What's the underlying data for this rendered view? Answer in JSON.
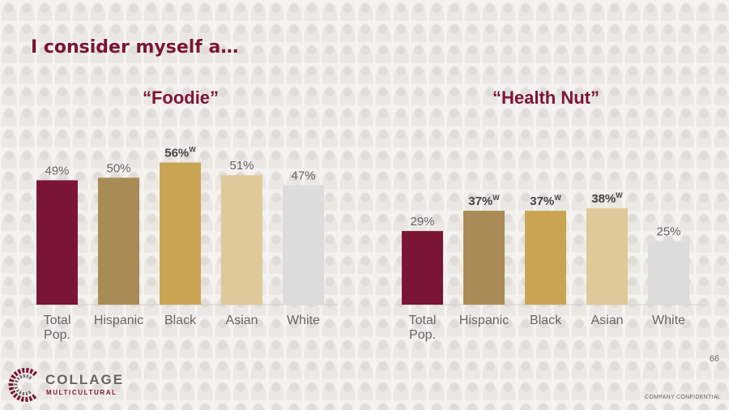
{
  "slide": {
    "title": "I consider myself a…",
    "page_number": "66",
    "confidential": "COMPANY CONFIDENTIAL",
    "logo": {
      "word": "COLLAGE",
      "sub": "MULTICULTURAL"
    }
  },
  "colors": {
    "Total Pop.": "#7a1535",
    "Hispanic": "#a98c55",
    "Black": "#c9a553",
    "Asian": "#dfc899",
    "White": "#dcdcdc",
    "title": "#7a1535"
  },
  "chart_data": [
    {
      "type": "bar",
      "title": "“Foodie”",
      "categories": [
        "Total Pop.",
        "Hispanic",
        "Black",
        "Asian",
        "White"
      ],
      "values": [
        49,
        50,
        56,
        51,
        47
      ],
      "labels": [
        "49%",
        "50%",
        "56%",
        "51%",
        "47%"
      ],
      "superscripts": [
        "",
        "",
        "W",
        "",
        ""
      ],
      "bold": [
        false,
        false,
        true,
        false,
        false
      ],
      "ylim": [
        0,
        60
      ],
      "grid": false
    },
    {
      "type": "bar",
      "title": "“Health Nut”",
      "categories": [
        "Total Pop.",
        "Hispanic",
        "Black",
        "Asian",
        "White"
      ],
      "values": [
        29,
        37,
        37,
        38,
        25
      ],
      "labels": [
        "29%",
        "37%",
        "37%",
        "38%",
        "25%"
      ],
      "superscripts": [
        "",
        "W",
        "W",
        "W",
        ""
      ],
      "bold": [
        false,
        true,
        true,
        true,
        false
      ],
      "ylim": [
        0,
        60
      ],
      "grid": false
    }
  ]
}
